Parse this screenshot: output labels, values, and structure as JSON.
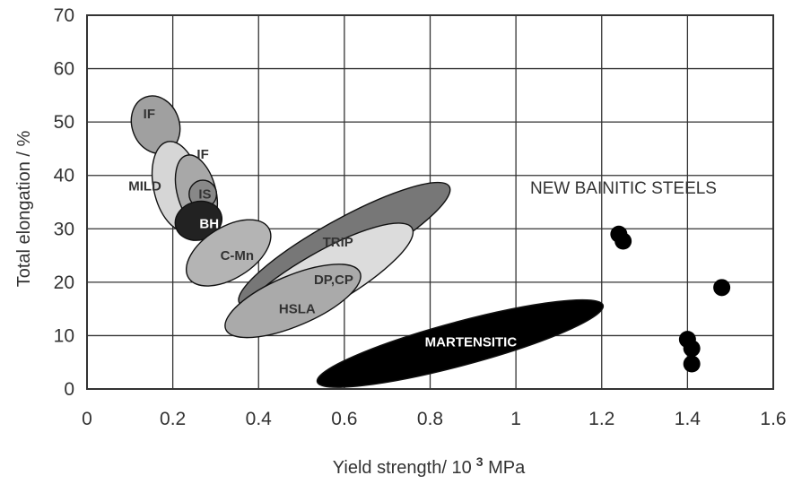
{
  "chart_data": {
    "type": "scatter",
    "title": "",
    "xlabel": "Yield strength/ 10",
    "xlabel_sup": "3",
    "xlabel_unit": " MPa",
    "ylabel": "Total elongation / %",
    "xlim": [
      0,
      1.6
    ],
    "ylim": [
      0,
      70
    ],
    "x_ticks": [
      0,
      0.2,
      0.4,
      0.6,
      0.8,
      1,
      1.2,
      1.4,
      1.6
    ],
    "x_tick_labels": [
      "0",
      "0.2",
      "0.4",
      "0.6",
      "0.8",
      "1",
      "1.2",
      "1.4",
      "1.6"
    ],
    "y_ticks": [
      0,
      10,
      20,
      30,
      40,
      50,
      60,
      70
    ],
    "y_tick_labels": [
      "0",
      "10",
      "20",
      "30",
      "40",
      "50",
      "60",
      "70"
    ],
    "grid": true,
    "regions": [
      {
        "name": "IF",
        "fill": "#a0a0a0",
        "cx": 0.16,
        "cy": 49.5,
        "rx": 0.055,
        "ry": 5.5,
        "angle": -20,
        "label_x": 0.145,
        "label_y": 51.5
      },
      {
        "name": "MILD",
        "fill": "#d6d6d6",
        "cx": 0.21,
        "cy": 38,
        "rx": 0.055,
        "ry": 8.5,
        "angle": -12,
        "label_x": 0.135,
        "label_y": 38
      },
      {
        "name": "IF",
        "fill": "#a8a8a8",
        "cx": 0.255,
        "cy": 37,
        "rx": 0.045,
        "ry": 7,
        "angle": -15,
        "label_x": 0.27,
        "label_y": 44
      },
      {
        "name": "IS",
        "fill": "#888888",
        "cx": 0.27,
        "cy": 36.5,
        "rx": 0.032,
        "ry": 2.6,
        "angle": 0,
        "label_x": 0.275,
        "label_y": 36.5
      },
      {
        "name": "BH",
        "fill": "#222222",
        "cx": 0.26,
        "cy": 31.5,
        "rx": 0.055,
        "ry": 3.6,
        "angle": -15,
        "label_x": 0.285,
        "label_y": 31,
        "light": true
      },
      {
        "name": "C-Mn",
        "fill": "#b4b4b4",
        "cx": 0.33,
        "cy": 25.5,
        "rx": 0.11,
        "ry": 4.8,
        "angle": -32,
        "label_x": 0.35,
        "label_y": 25
      },
      {
        "name": "TRIP",
        "fill": "#777777",
        "cx": 0.6,
        "cy": 27,
        "rx": 0.28,
        "ry": 4.8,
        "angle": -29,
        "label_x": 0.585,
        "label_y": 27.5
      },
      {
        "name": "DP,CP",
        "fill": "#dcdcdc",
        "cx": 0.55,
        "cy": 20.5,
        "rx": 0.24,
        "ry": 5.0,
        "angle": -30,
        "label_x": 0.575,
        "label_y": 20.5
      },
      {
        "name": "HSLA",
        "fill": "#aaaaaa",
        "cx": 0.48,
        "cy": 16.5,
        "rx": 0.17,
        "ry": 4.7,
        "angle": -23,
        "label_x": 0.49,
        "label_y": 15
      },
      {
        "name": "MARTENSITIC",
        "fill": "#000000",
        "cx": 0.87,
        "cy": 8.5,
        "rx": 0.345,
        "ry": 4.1,
        "angle": -15,
        "label_x": 0.895,
        "label_y": 8.8,
        "light": true
      }
    ],
    "series": [
      {
        "name": "NEW BAINITIC STEELS",
        "points": [
          {
            "x": 1.24,
            "y": 29
          },
          {
            "x": 1.25,
            "y": 27.7
          },
          {
            "x": 1.48,
            "y": 19
          },
          {
            "x": 1.4,
            "y": 9.3
          },
          {
            "x": 1.41,
            "y": 7.6
          },
          {
            "x": 1.41,
            "y": 4.7
          }
        ]
      }
    ],
    "annotation": "NEW BAINITIC STEELS"
  }
}
